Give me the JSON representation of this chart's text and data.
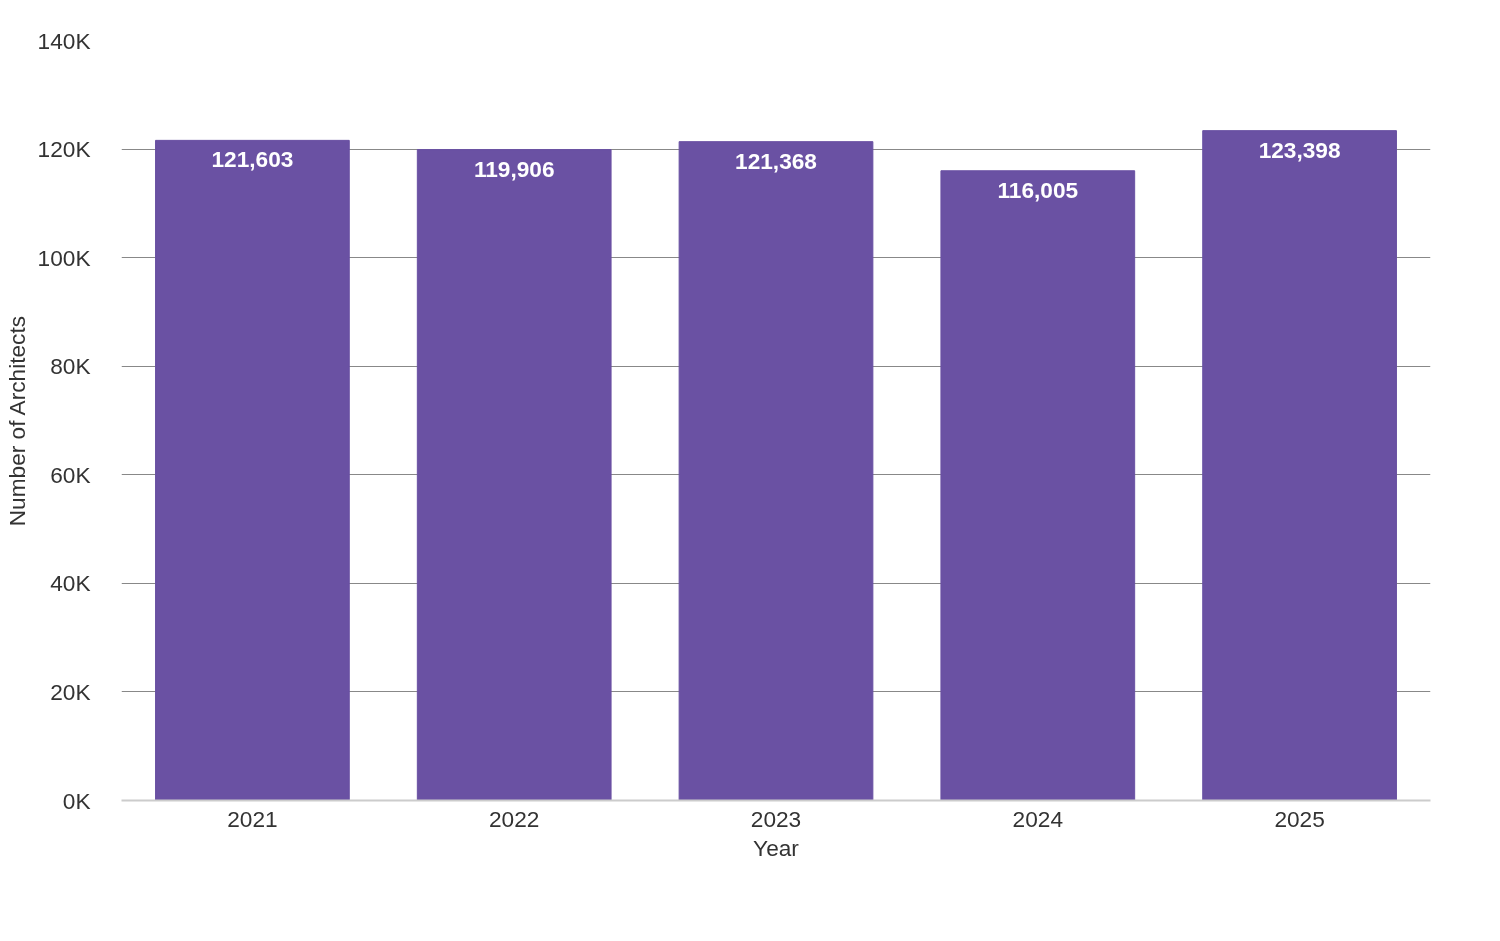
{
  "chart_data": {
    "type": "bar",
    "xlabel": "Year",
    "ylabel": "Number of Architects",
    "categories": [
      "2021",
      "2022",
      "2023",
      "2024",
      "2025"
    ],
    "values": [
      121603,
      119906,
      121368,
      116005,
      123398
    ],
    "color": "#6a51a3",
    "ylim": [
      0,
      140000
    ],
    "yticks": [
      {
        "value": 0,
        "label": "0K"
      },
      {
        "value": 20000,
        "label": "20K"
      },
      {
        "value": 40000,
        "label": "40K"
      },
      {
        "value": 60000,
        "label": "60K"
      },
      {
        "value": 80000,
        "label": "80K"
      },
      {
        "value": 100000,
        "label": "100K"
      },
      {
        "value": 120000,
        "label": "120K"
      },
      {
        "value": 140000,
        "label": "140K"
      }
    ],
    "value_labels": [
      "121,603",
      "119,906",
      "121,368",
      "116,005",
      "123,398"
    ],
    "grid": "y"
  }
}
